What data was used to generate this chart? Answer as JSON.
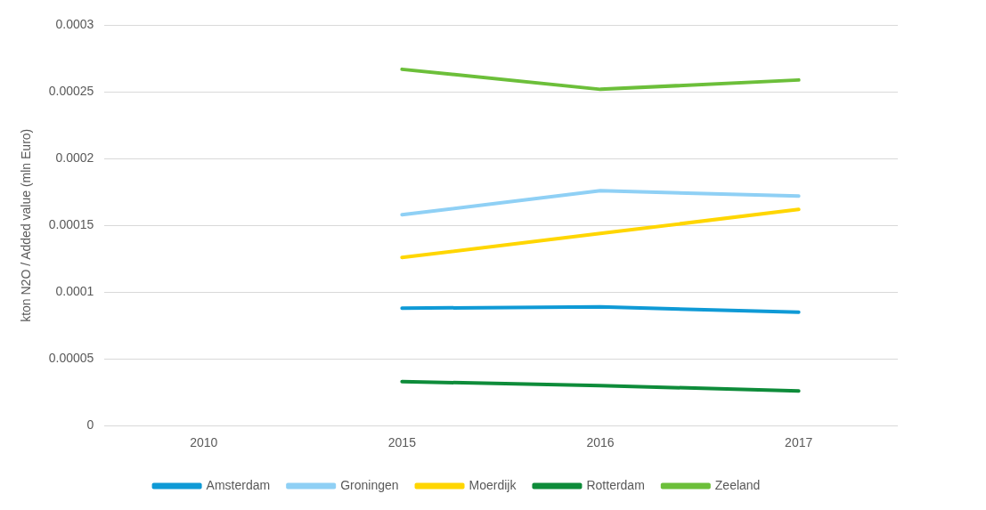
{
  "chart_data": {
    "type": "line",
    "ylabel": "kton N2O / Added value (mln Euro)",
    "categories": [
      "2010",
      "2015",
      "2016",
      "2017"
    ],
    "series": [
      {
        "name": "Amsterdam",
        "color": "#0f9ad6",
        "values": [
          null,
          8.8e-05,
          8.9e-05,
          8.5e-05
        ]
      },
      {
        "name": "Groningen",
        "color": "#8fd0f5",
        "values": [
          null,
          0.000158,
          0.000176,
          0.000172
        ]
      },
      {
        "name": "Moerdijk",
        "color": "#ffd600",
        "values": [
          null,
          0.000126,
          0.000144,
          0.000162
        ]
      },
      {
        "name": "Rotterdam",
        "color": "#0e8c3a",
        "values": [
          null,
          3.3e-05,
          3e-05,
          2.6e-05
        ]
      },
      {
        "name": "Zeeland",
        "color": "#6cbf3a",
        "values": [
          null,
          0.000267,
          0.000252,
          0.000259
        ]
      }
    ],
    "ylim": [
      0,
      0.0003
    ],
    "yticks": [
      0,
      {
        "value": 5e-05,
        "label": "0.00005"
      },
      0.0001,
      0.00015,
      0.0002,
      0.00025,
      0.0003
    ],
    "grid": "y",
    "legend": "bottom",
    "marker": "none",
    "line_style": "solid"
  }
}
